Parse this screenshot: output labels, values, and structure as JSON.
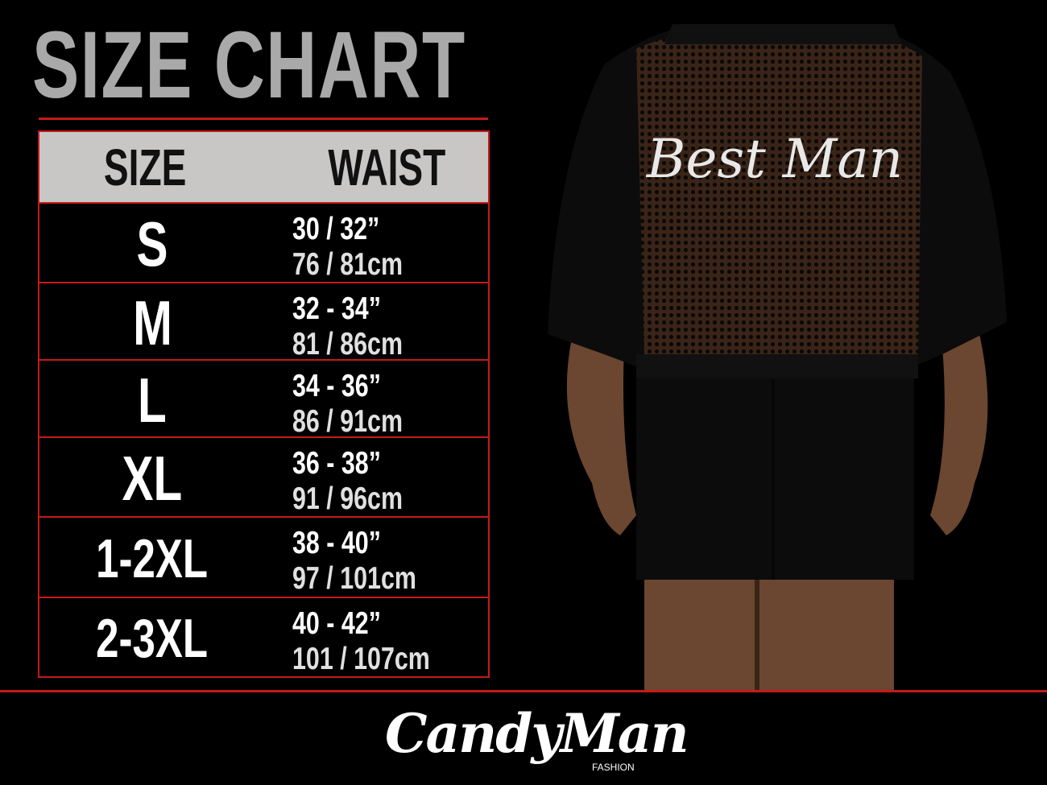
{
  "title": "SIZE CHART",
  "table": {
    "headers": {
      "size": "SIZE",
      "waist": "WAIST"
    },
    "rows": [
      {
        "size": "S",
        "inches": "30 / 32”",
        "cm": "76 / 81cm"
      },
      {
        "size": "M",
        "inches": "32 - 34”",
        "cm": "81 / 86cm"
      },
      {
        "size": "L",
        "inches": "34 - 36”",
        "cm": "86 / 91cm"
      },
      {
        "size": "XL",
        "inches": "36 - 38”",
        "cm": "91 / 96cm"
      },
      {
        "size": "1-2XL",
        "inches": "38 - 40”",
        "cm": "97 / 101cm"
      },
      {
        "size": "2-3XL",
        "inches": "40 - 42”",
        "cm": "101 / 107cm"
      }
    ]
  },
  "product_print": "Best Man",
  "brand": {
    "name": "CandyMan",
    "sub": "FASHION"
  },
  "colors": {
    "accent": "#c41a1a",
    "header_bg": "#c9c6c6",
    "title": "#a9a9a9",
    "background": "#000000"
  }
}
